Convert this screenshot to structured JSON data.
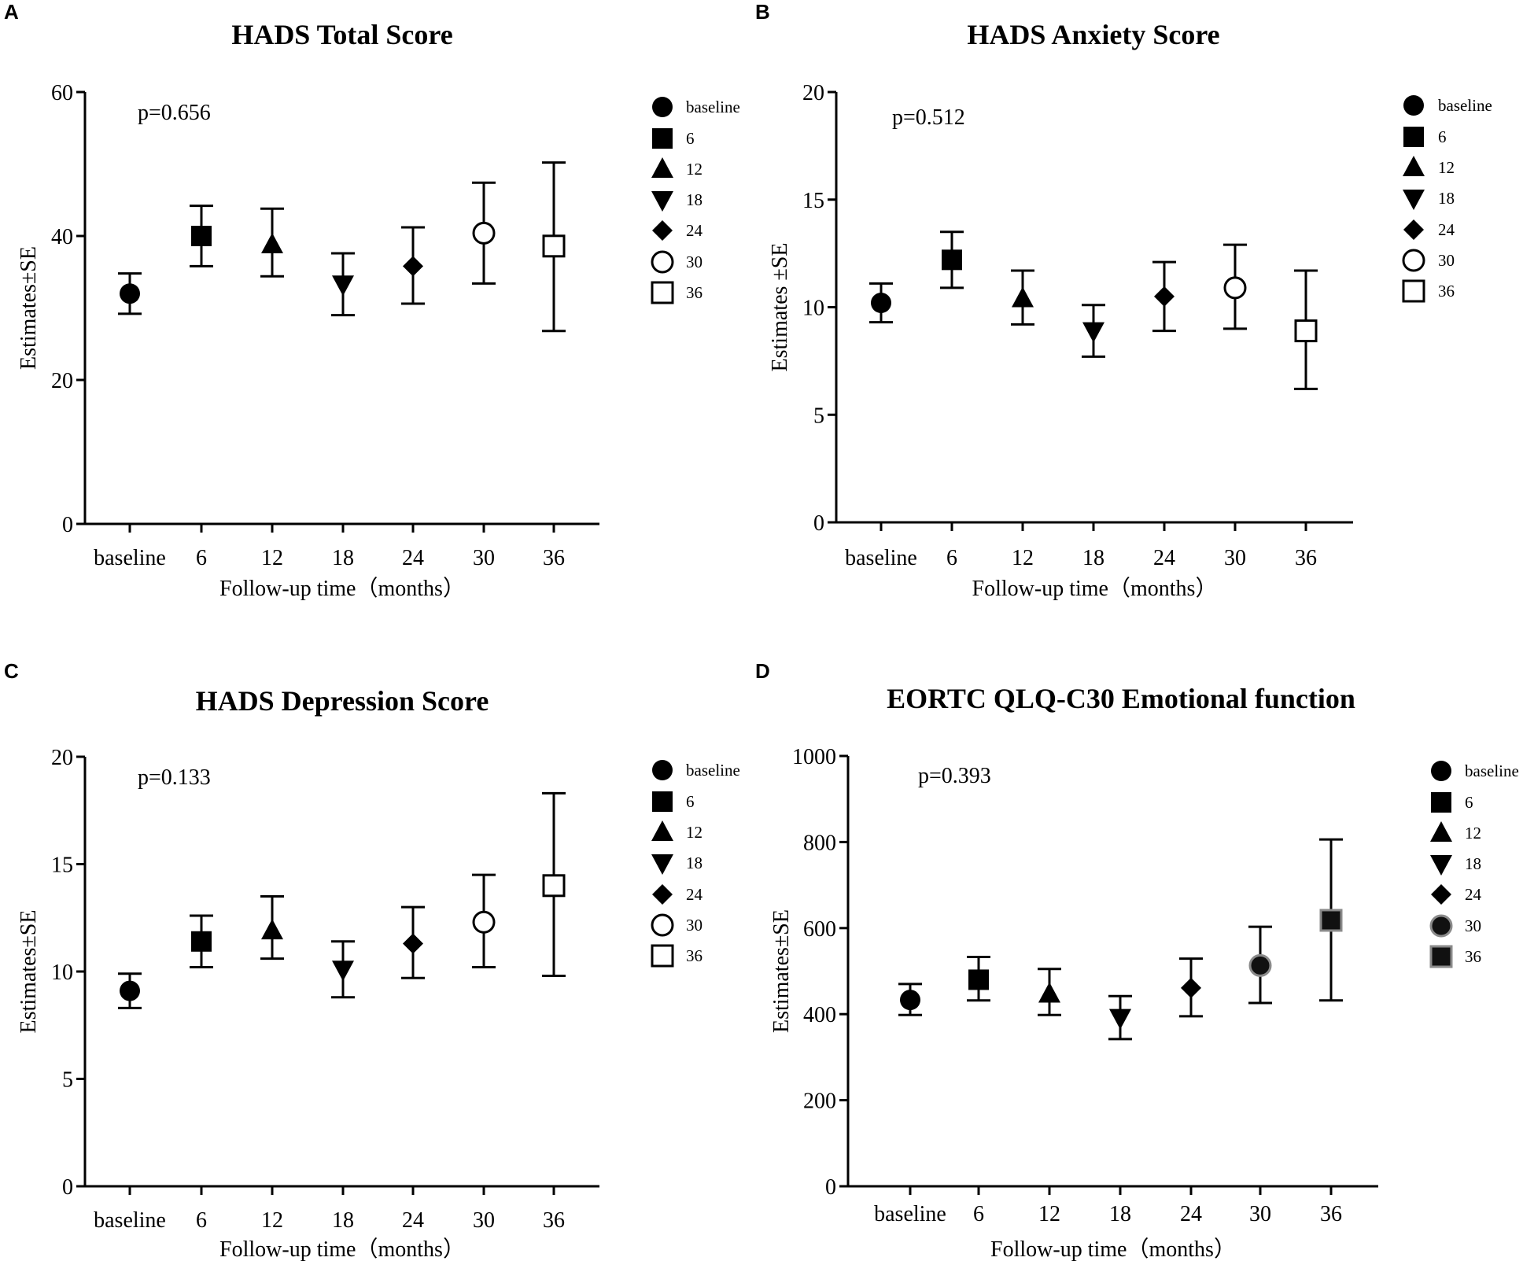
{
  "figure": {
    "x_axis_label": "Follow-up time（months）",
    "y_axis_label": "Estimates±SE"
  },
  "chart_data": [
    {
      "panel": "A",
      "type": "scatter",
      "title": "HADS Total Score",
      "p_value": "p=0.656",
      "xlabel": "Follow-up time（months）",
      "ylabel": "Estimates±SE",
      "categories": [
        "baseline",
        "6",
        "12",
        "18",
        "24",
        "30",
        "36"
      ],
      "values": [
        32.0,
        40.0,
        38.8,
        33.3,
        35.8,
        40.4,
        38.6
      ],
      "lower": [
        29.2,
        35.8,
        34.4,
        29.0,
        30.6,
        33.4,
        26.8
      ],
      "upper": [
        34.8,
        44.2,
        43.8,
        37.6,
        41.2,
        47.4,
        50.2
      ],
      "ylim": [
        0,
        60
      ],
      "yticks": [
        "0",
        "20",
        "40",
        "60"
      ],
      "legend": [
        "baseline",
        "6",
        "12",
        "18",
        "24",
        "30",
        "36"
      ],
      "markers": [
        "circle",
        "square",
        "triangle",
        "triangle-down",
        "diamond",
        "circle-open",
        "square-open"
      ]
    },
    {
      "panel": "B",
      "type": "scatter",
      "title": "HADS Anxiety Score",
      "p_value": "p=0.512",
      "xlabel": "Follow-up time（months）",
      "ylabel": "Estimates ±SE",
      "categories": [
        "baseline",
        "6",
        "12",
        "18",
        "24",
        "30",
        "36"
      ],
      "values": [
        10.2,
        12.2,
        10.4,
        8.9,
        10.5,
        10.9,
        8.9
      ],
      "lower": [
        9.3,
        10.9,
        9.2,
        7.7,
        8.9,
        9.0,
        6.2
      ],
      "upper": [
        11.1,
        13.5,
        11.7,
        10.1,
        12.1,
        12.9,
        11.7
      ],
      "ylim": [
        0,
        20
      ],
      "yticks": [
        "0",
        "5",
        "10",
        "15",
        "20"
      ],
      "legend": [
        "baseline",
        "6",
        "12",
        "18",
        "24",
        "30",
        "36"
      ],
      "markers": [
        "circle",
        "square",
        "triangle",
        "triangle-down",
        "diamond",
        "circle-open",
        "square-open"
      ]
    },
    {
      "panel": "C",
      "type": "scatter",
      "title": "HADS Depression Score",
      "p_value": "p=0.133",
      "xlabel": "Follow-up time（months）",
      "ylabel": "Estimates±SE",
      "categories": [
        "baseline",
        "6",
        "12",
        "18",
        "24",
        "30",
        "36"
      ],
      "values": [
        9.1,
        11.4,
        11.9,
        10.1,
        11.3,
        12.3,
        14.0
      ],
      "lower": [
        8.3,
        10.2,
        10.6,
        8.8,
        9.7,
        10.2,
        9.8
      ],
      "upper": [
        9.9,
        12.6,
        13.5,
        11.4,
        13.0,
        14.5,
        18.3
      ],
      "ylim": [
        0,
        20
      ],
      "yticks": [
        "0",
        "5",
        "10",
        "15",
        "20"
      ],
      "legend": [
        "baseline",
        "6",
        "12",
        "18",
        "24",
        "30",
        "36"
      ],
      "markers": [
        "circle",
        "square",
        "triangle",
        "triangle-down",
        "diamond",
        "circle-open",
        "square-open"
      ]
    },
    {
      "panel": "D",
      "type": "scatter",
      "title": "EORTC QLQ-C30 Emotional function",
      "p_value": "p=0.393",
      "xlabel": "Follow-up time（months）",
      "ylabel": "Estimates±SE",
      "categories": [
        "baseline",
        "6",
        "12",
        "18",
        "24",
        "30",
        "36"
      ],
      "values": [
        433,
        480,
        447,
        392,
        461,
        513,
        618
      ],
      "lower": [
        398,
        432,
        398,
        342,
        395,
        426,
        432
      ],
      "upper": [
        470,
        533,
        505,
        442,
        529,
        603,
        806
      ],
      "ylim": [
        0,
        1000
      ],
      "yticks": [
        "0",
        "200",
        "400",
        "600",
        "800",
        "1000"
      ],
      "legend": [
        "baseline",
        "6",
        "12",
        "18",
        "24",
        "30",
        "36"
      ],
      "markers": [
        "circle",
        "square",
        "triangle",
        "triangle-down",
        "diamond",
        "circle-gray",
        "square-gray"
      ]
    }
  ]
}
